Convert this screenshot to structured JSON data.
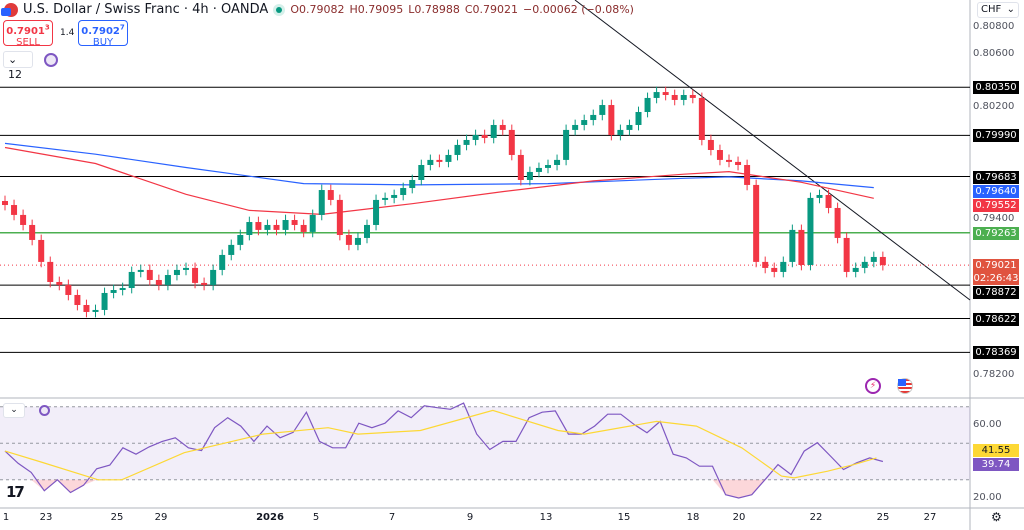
{
  "header": {
    "title": "U.S. Dollar / Swiss Franc · 4h · OANDA",
    "open": "O0.79082",
    "high": "H0.79095",
    "low": "L0.78988",
    "close": "C0.79021",
    "change": "−0.00062 (−0.08%)"
  },
  "trade": {
    "sell_price": "0.7901",
    "sell_sup": "3",
    "sell_label": "SELL",
    "spread": "1.4",
    "buy_price": "0.7902",
    "buy_sup": "7",
    "buy_label": "BUY"
  },
  "indicators_count": "12",
  "currency": "CHF",
  "colors": {
    "up": "#089981",
    "down": "#f23645",
    "ma_blue": "#2962ff",
    "ma_red": "#f23645",
    "rsi": "#7e57c2",
    "rsi_ma": "#fdd835",
    "support": "#4caf50"
  },
  "chart_data": {
    "type": "candlestick",
    "ylim": [
      0.781,
      0.81
    ],
    "y_ticks": [
      "0.80800",
      "0.80600",
      "0.80200",
      "0.79400",
      "0.78200"
    ],
    "x_ticks": [
      "1",
      "23",
      "25",
      "29",
      "2026",
      "5",
      "7",
      "9",
      "13",
      "15",
      "18",
      "20",
      "22",
      "25",
      "27"
    ],
    "closes": [
      0.7947,
      0.79396,
      0.79321,
      0.79209,
      0.79045,
      0.78895,
      0.78873,
      0.78798,
      0.78723,
      0.78671,
      0.78686,
      0.78813,
      0.78835,
      0.7885,
      0.7897,
      0.78985,
      0.7891,
      0.78873,
      0.78947,
      0.78985,
      0.79,
      0.78888,
      0.78873,
      0.78985,
      0.79097,
      0.79172,
      0.79246,
      0.79343,
      0.79284,
      0.79321,
      0.79284,
      0.79358,
      0.79321,
      0.79269,
      0.79396,
      0.79582,
      0.79508,
      0.79246,
      0.79172,
      0.79224,
      0.79321,
      0.79508,
      0.79523,
      0.79545,
      0.79597,
      0.79657,
      0.79769,
      0.79807,
      0.79792,
      0.79844,
      0.79919,
      0.79956,
      0.79993,
      0.79971,
      0.80068,
      0.80031,
      0.79844,
      0.79657,
      0.79717,
      0.79747,
      0.79769,
      0.79807,
      0.80031,
      0.80068,
      0.80105,
      0.80143,
      0.80217,
      0.79993,
      0.80031,
      0.80068,
      0.80165,
      0.8027,
      0.80314,
      0.80292,
      0.80255,
      0.80292,
      0.8027,
      0.79956,
      0.79881,
      0.79807,
      0.79792,
      0.79769,
      0.7962,
      0.79045,
      0.79,
      0.7897,
      0.79045,
      0.79284,
      0.79022,
      0.79523,
      0.79545,
      0.79448,
      0.79224,
      0.7897,
      0.79,
      0.79045,
      0.79082,
      0.79021
    ],
    "ma_blue": [
      [
        0,
        0.7993
      ],
      [
        10,
        0.7985
      ],
      [
        20,
        0.7975
      ],
      [
        33,
        0.7963
      ],
      [
        45,
        0.7962
      ],
      [
        60,
        0.7963
      ],
      [
        75,
        0.7967
      ],
      [
        80,
        0.7968
      ],
      [
        88,
        0.7965
      ],
      [
        96,
        0.796
      ]
    ],
    "ma_red": [
      [
        0,
        0.799
      ],
      [
        10,
        0.7978
      ],
      [
        20,
        0.7955
      ],
      [
        27,
        0.7943
      ],
      [
        35,
        0.794
      ],
      [
        45,
        0.7948
      ],
      [
        55,
        0.7957
      ],
      [
        65,
        0.7965
      ],
      [
        75,
        0.797
      ],
      [
        80,
        0.7972
      ],
      [
        88,
        0.7964
      ],
      [
        96,
        0.7952
      ]
    ],
    "levels": [
      {
        "value": 0.8035,
        "label": "0.80350",
        "color": "#000000"
      },
      {
        "value": 0.7999,
        "label": "0.79990",
        "color": "#000000"
      },
      {
        "value": 0.79683,
        "label": "0.79683",
        "color": "#000000"
      },
      {
        "value": 0.79263,
        "label": "0.79263",
        "color": "#4caf50"
      },
      {
        "value": 0.78872,
        "label": "0.78872",
        "color": "#000000"
      },
      {
        "value": 0.78622,
        "label": "0.78622",
        "color": "#000000"
      },
      {
        "value": 0.78369,
        "label": "0.78369",
        "color": "#000000"
      }
    ],
    "ma_tags": [
      {
        "label": "0.79640",
        "color": "#2962ff"
      },
      {
        "label": "0.79552",
        "color": "#f23645"
      }
    ],
    "last_price": {
      "label": "0.79021",
      "countdown": "02:26:43",
      "color": "#e0533f"
    },
    "rsi": {
      "ylim": [
        15,
        75
      ],
      "bands": [
        70,
        50,
        30
      ],
      "ticks": [
        "60.00",
        "20.00"
      ],
      "value_label": "39.74",
      "ma_label": "41.55",
      "values": [
        45.7,
        39,
        34,
        24,
        30,
        23,
        27,
        36,
        38,
        47.5,
        44,
        48,
        51,
        53,
        47.5,
        46,
        58.5,
        64,
        59.4,
        51,
        59.4,
        53,
        56,
        67,
        51,
        47.5,
        47.5,
        61,
        58.5,
        61,
        67.7,
        64,
        70.5,
        69.5,
        68.6,
        72,
        55,
        46.6,
        51,
        51,
        64,
        67,
        67.7,
        55,
        55,
        59.4,
        65.9,
        65.9,
        60.4,
        55.8,
        62,
        44,
        42,
        37.4,
        37.4,
        21.8,
        20,
        21.8,
        30,
        38.3,
        32.8,
        45.7,
        50.3,
        43,
        35.6,
        39.3,
        42,
        40
      ],
      "ma": [
        [
          0,
          45.7
        ],
        [
          3.8,
          40
        ],
        [
          10.3,
          30
        ],
        [
          12.9,
          30
        ],
        [
          19.8,
          44.8
        ],
        [
          28.5,
          55
        ],
        [
          35.7,
          58.5
        ],
        [
          39,
          55
        ],
        [
          45.9,
          57
        ],
        [
          53.9,
          68
        ],
        [
          61.1,
          57
        ],
        [
          64,
          55
        ],
        [
          72,
          62
        ],
        [
          76.4,
          59.4
        ],
        [
          81.4,
          47.5
        ],
        [
          85.8,
          32
        ],
        [
          87.2,
          31
        ],
        [
          90.9,
          34.7
        ],
        [
          93.8,
          38.3
        ],
        [
          96.3,
          42
        ]
      ]
    }
  }
}
